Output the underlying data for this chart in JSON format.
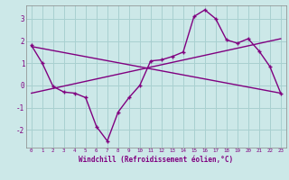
{
  "hours": [
    0,
    1,
    2,
    3,
    4,
    5,
    6,
    7,
    8,
    9,
    10,
    11,
    12,
    13,
    14,
    15,
    16,
    17,
    18,
    19,
    20,
    21,
    22,
    23
  ],
  "windchill": [
    1.8,
    1.0,
    -0.05,
    -0.3,
    -0.35,
    -0.55,
    -1.85,
    -2.5,
    -1.2,
    -0.55,
    0.0,
    1.1,
    1.15,
    1.3,
    1.5,
    3.1,
    3.4,
    3.0,
    2.05,
    1.9,
    2.1,
    1.55,
    0.85,
    -0.35
  ],
  "trend1_x": [
    0,
    23
  ],
  "trend1_y": [
    1.75,
    -0.35
  ],
  "trend2_x": [
    0,
    23
  ],
  "trend2_y": [
    -0.35,
    2.1
  ],
  "line_color": "#800080",
  "bg_color": "#cce8e8",
  "grid_color": "#a8d0d0",
  "axis_color": "#800080",
  "xlabel": "Windchill (Refroidissement éolien,°C)",
  "ylim": [
    -2.8,
    3.6
  ],
  "xlim": [
    -0.5,
    23.5
  ],
  "yticks": [
    -2,
    -1,
    0,
    1,
    2,
    3
  ],
  "xticks": [
    0,
    1,
    2,
    3,
    4,
    5,
    6,
    7,
    8,
    9,
    10,
    11,
    12,
    13,
    14,
    15,
    16,
    17,
    18,
    19,
    20,
    21,
    22,
    23
  ]
}
